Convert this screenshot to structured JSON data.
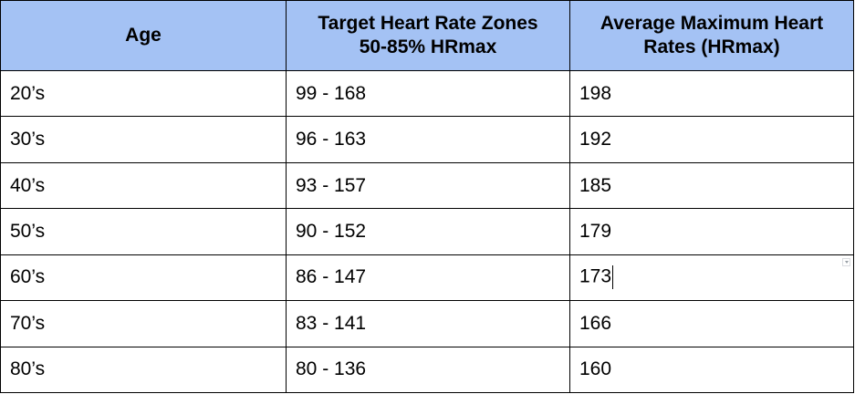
{
  "table": {
    "headers": {
      "age": "Age",
      "zones": [
        "Target Heart Rate Zones",
        "50-85% HRmax"
      ],
      "max": [
        "Average Maximum Heart",
        "Rates (HRmax)"
      ]
    },
    "rows": [
      {
        "age": "20’s",
        "zone": "99 - 168",
        "max": "198"
      },
      {
        "age": "30’s",
        "zone": "96 - 163",
        "max": "192"
      },
      {
        "age": "40’s",
        "zone": "93 - 157",
        "max": "185"
      },
      {
        "age": "50’s",
        "zone": "90 - 152",
        "max": "179"
      },
      {
        "age": "60’s",
        "zone": "86 - 147",
        "max": "173"
      },
      {
        "age": "70’s",
        "zone": "83 - 141",
        "max": "166"
      },
      {
        "age": "80’s",
        "zone": "80 - 136",
        "max": "160"
      }
    ]
  },
  "colors": {
    "header_bg": "#a4c2f4",
    "border": "#000000",
    "text": "#000000"
  },
  "icons": {
    "cell_menu": "chevron-down-icon"
  }
}
